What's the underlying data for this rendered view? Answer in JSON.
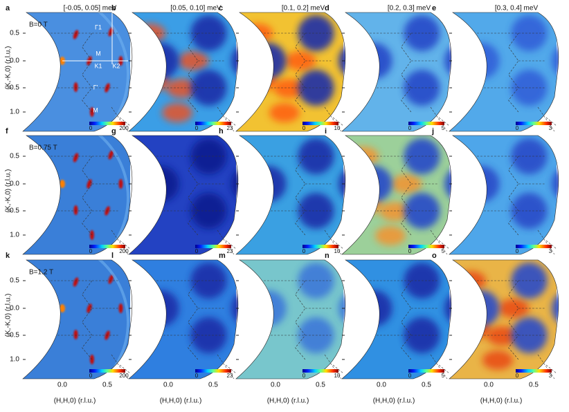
{
  "figure": {
    "x_axis_label": "(H,H,0)  (r.l.u.)",
    "y_axis_label": "(K,-K,0)  (r.l.u.)",
    "x_ticks": [
      "0.0",
      "0.5"
    ],
    "y_ticks": [
      "0.5",
      "0.0",
      "-0.5",
      "1.0"
    ],
    "energy_ranges": [
      "[-0.05, 0.05] meV",
      "[0.05, 0.10] meV",
      "[0.1, 0.2] meV",
      "[0.2, 0.3] meV",
      "[0.3, 0.4] meV"
    ],
    "fields": [
      "B=0 T",
      "B=0.75 T",
      "B=1.2 T"
    ],
    "panel_letters": [
      "a",
      "b",
      "c",
      "d",
      "e",
      "f",
      "g",
      "h",
      "i",
      "j",
      "k",
      "l",
      "m",
      "n",
      "o"
    ],
    "colorbar_min": "0",
    "colorbar_max": [
      "200",
      "23",
      "10",
      "5",
      "3"
    ],
    "point_labels": [
      "Γ",
      "Γ1",
      "M",
      "K1",
      "K2",
      "Γ'",
      "M"
    ]
  }
}
